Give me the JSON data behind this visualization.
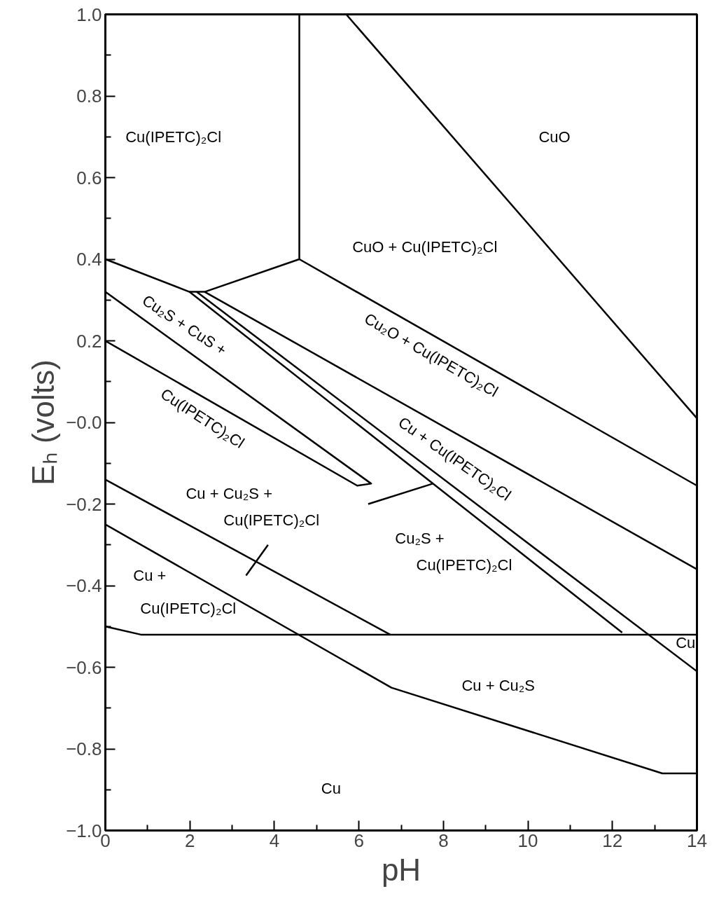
{
  "chart_data": {
    "type": "line",
    "xlabel": "pH",
    "ylabel": "Eₕ (volts)",
    "xlim": [
      0,
      14
    ],
    "ylim": [
      -1.0,
      1.0
    ],
    "xticks": [
      0,
      2,
      4,
      6,
      8,
      10,
      12,
      14
    ],
    "yticks": [
      {
        "value": -1.0,
        "label": "−1.0"
      },
      {
        "value": -0.8,
        "label": "−0.8"
      },
      {
        "value": -0.6,
        "label": "−0.6"
      },
      {
        "value": -0.4,
        "label": "−0.4"
      },
      {
        "value": -0.2,
        "label": "−0.2"
      },
      {
        "value": 0,
        "label": "−0.0"
      },
      0.2,
      0.4,
      0.6,
      0.8,
      {
        "value": 1.0,
        "label": "1.0"
      }
    ],
    "grid": false,
    "marker": "none",
    "line_style": "solid",
    "series": [
      {
        "color": "#000000",
        "x": [
          0,
          1.99,
          2.35,
          4.59,
          4.59
        ],
        "values": [
          0.4,
          0.32,
          0.32,
          0.4,
          1.0
        ]
      },
      {
        "color": "#000000",
        "x": [
          4.59,
          14
        ],
        "values": [
          0.4,
          -0.155
        ]
      },
      {
        "color": "#000000",
        "x": [
          5.7,
          14
        ],
        "values": [
          1.0,
          0.01
        ]
      },
      {
        "color": "#000000",
        "x": [
          2.35,
          14
        ],
        "values": [
          0.32,
          -0.36
        ]
      },
      {
        "color": "#000000",
        "x": [
          1.99,
          12.23
        ],
        "values": [
          0.32,
          -0.515
        ]
      },
      {
        "color": "#000000",
        "x": [
          2.16,
          14
        ],
        "values": [
          0.32,
          -0.61
        ]
      },
      {
        "color": "#000000",
        "x": [
          0,
          6.29,
          5.96,
          0
        ],
        "values": [
          0.32,
          -0.15,
          -0.155,
          0.2
        ]
      },
      {
        "color": "#000000",
        "x": [
          6.22,
          7.75
        ],
        "values": [
          -0.2,
          -0.15
        ]
      },
      {
        "color": "#000000",
        "x": [
          0,
          6.74
        ],
        "values": [
          -0.14,
          -0.52
        ]
      },
      {
        "color": "#000000",
        "x": [
          3.33,
          3.85
        ],
        "values": [
          -0.375,
          -0.3
        ]
      },
      {
        "color": "#000000",
        "x": [
          0,
          6.77,
          13.18,
          14
        ],
        "values": [
          -0.25,
          -0.65,
          -0.86,
          -0.86
        ]
      },
      {
        "color": "#000000",
        "x": [
          0,
          0.84,
          14
        ],
        "values": [
          -0.5,
          -0.52,
          -0.52
        ]
      }
    ],
    "annotations": [
      "Cu(IPETC)₂Cl",
      "CuO",
      "CuO  +  Cu(IPETC)₂Cl",
      "Cu₂O  +  Cu(IPETC)₂Cl",
      "Cu  +  Cu(IPETC)₂Cl",
      "Cu₂S  +  CuS  +",
      "Cu(IPETC)₂Cl",
      "Cu  +  Cu₂S  +",
      "Cu(IPETC)₂Cl",
      "Cu₂S  +",
      "Cu(IPETC)₂Cl",
      "Cu  +",
      "Cu(IPETC)₂Cl",
      "Cu",
      "Cu  +  Cu₂S",
      "Cu"
    ]
  }
}
